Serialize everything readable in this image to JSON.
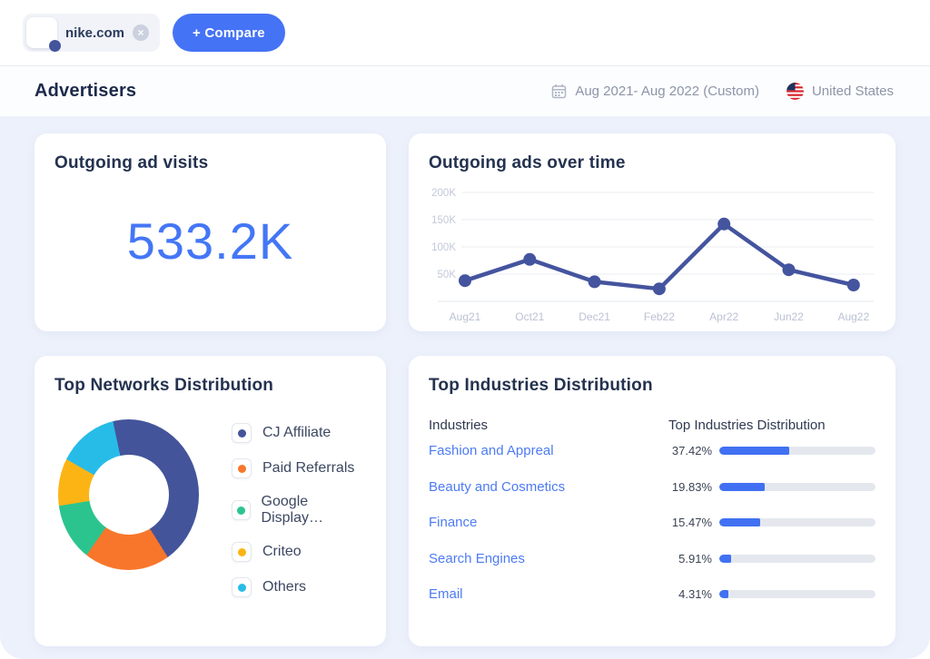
{
  "topbar": {
    "site_chip": {
      "domain": "nike.com",
      "close_icon": "×"
    },
    "compare_button": "+ Compare"
  },
  "header": {
    "title": "Advertisers",
    "date_range": "Aug 2021- Aug 2022 (Custom)",
    "country": "United States"
  },
  "cards": {
    "outgoing_visits": {
      "title": "Outgoing ad visits",
      "value": "533.2K"
    },
    "ads_over_time": {
      "title": "Outgoing ads over time"
    },
    "networks": {
      "title": "Top Networks Distribution"
    },
    "industries": {
      "title": "Top Industries Distribution",
      "col_industries": "Industries",
      "col_distribution": "Top Industries Distribution"
    }
  },
  "colors": {
    "accent_blue": "#4573F5",
    "kpi_blue": "#4476F6",
    "line_navy": "#44549E",
    "grid_gray": "#E9ECF2",
    "tick_gray": "#C2C9D8"
  },
  "chart_data": [
    {
      "type": "line",
      "title": "Outgoing ads over time",
      "x": [
        "Aug21",
        "Oct21",
        "Dec21",
        "Feb22",
        "Apr22",
        "Jun22",
        "Aug22"
      ],
      "values_k": [
        38,
        77,
        36,
        23,
        142,
        58,
        30
      ],
      "yticks": [
        "50K",
        "100K",
        "150K",
        "200K"
      ],
      "ylim_k": [
        0,
        200
      ],
      "grid": true,
      "legend": "none",
      "color": "#44549E"
    },
    {
      "type": "pie",
      "title": "Top Networks Distribution",
      "labels": [
        "CJ Affiliate",
        "Paid Referrals",
        "Google Display…",
        "Criteo",
        "Others"
      ],
      "values": [
        44.4,
        18.6,
        12.8,
        10.8,
        13.4
      ],
      "colors": [
        "#44549B",
        "#F8762B",
        "#2BC48F",
        "#FCB414",
        "#27BCE8"
      ],
      "start_angle_deg": -12,
      "donut": true,
      "legend_position": "right"
    },
    {
      "type": "bar",
      "title": "Top Industries Distribution",
      "categories": [
        "Fashion and Appreal",
        "Beauty and Cosmetics",
        "Finance",
        "Search Engines",
        "Email"
      ],
      "values": [
        37.42,
        19.83,
        15.47,
        5.91,
        4.31
      ],
      "value_labels": [
        "37.42%",
        "19.83%",
        "15.47%",
        "5.91%",
        "4.31%"
      ],
      "bar_display_pct": [
        44.7,
        29.1,
        26.2,
        7.8,
        5.8
      ],
      "bar_color": "#4171F2",
      "track_color": "#E4E8EE",
      "orientation": "horizontal"
    }
  ]
}
